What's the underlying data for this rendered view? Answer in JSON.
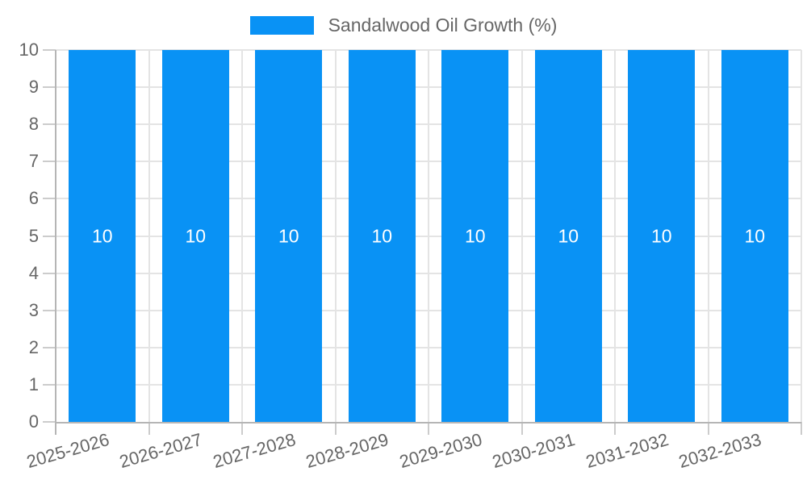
{
  "chart_data": {
    "type": "bar",
    "title": "Sandalwood Oil Growth (%)",
    "legend": {
      "position": "top",
      "items": [
        {
          "label": "Sandalwood Oil Growth (%)",
          "color": "#0992f5"
        }
      ]
    },
    "categories": [
      "2025-2026",
      "2026-2027",
      "2027-2028",
      "2028-2029",
      "2029-2030",
      "2030-2031",
      "2031-2032",
      "2032-2033"
    ],
    "series": [
      {
        "name": "Sandalwood Oil Growth (%)",
        "color": "#0992f5",
        "values": [
          10,
          10,
          10,
          10,
          10,
          10,
          10,
          10
        ],
        "value_labels": [
          "10",
          "10",
          "10",
          "10",
          "10",
          "10",
          "10",
          "10"
        ]
      }
    ],
    "xlabel": "",
    "ylabel": "",
    "ylim": [
      0,
      10
    ],
    "yticks": [
      "0",
      "1",
      "2",
      "3",
      "4",
      "5",
      "6",
      "7",
      "8",
      "9",
      "10"
    ],
    "grid": true,
    "x_tick_rotation_deg": -16,
    "styles": {
      "background": "#ffffff",
      "bar_color": "#0992f5",
      "value_label_color": "#ffffff",
      "tick_label_color": "#666666",
      "legend_text_color": "#666666",
      "gridline_color": "#e4e4e4",
      "axis_line_color": "#b5b5b5",
      "tick_mark_color": "#cccccc"
    }
  }
}
